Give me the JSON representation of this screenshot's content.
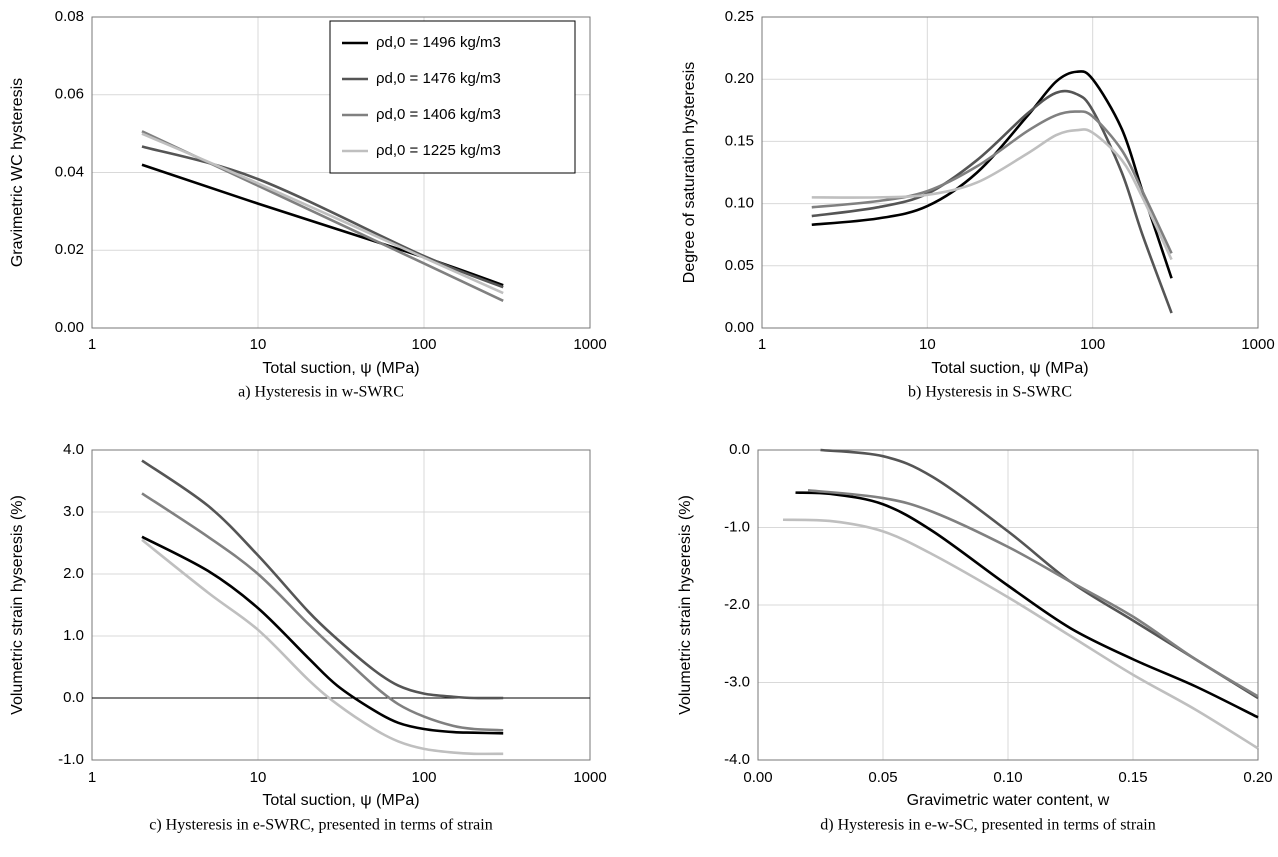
{
  "chart_data": [
    {
      "type": "line",
      "xlabel": "Total suction, ψ (MPa)",
      "ylabel": "Gravimetric WC hysteresis",
      "caption": "a) Hysteresis in w-SWRC",
      "xlog": true,
      "xlim": [
        1,
        1000
      ],
      "xticks": [
        1,
        10,
        100,
        1000
      ],
      "ylim": [
        0,
        0.08
      ],
      "yticks": [
        {
          "value": 0,
          "label": "0.00"
        },
        {
          "value": 0.02,
          "label": "0.02"
        },
        {
          "value": 0.04,
          "label": "0.04"
        },
        {
          "value": 0.06,
          "label": "0.06"
        },
        {
          "value": 0.08,
          "label": "0.08"
        }
      ],
      "grid": true,
      "legend": "top-right",
      "x": [
        2,
        10,
        100,
        300
      ],
      "series": [
        {
          "name": "ρd,0 = 1496 kg/m3",
          "color": "#000000",
          "values": [
            0.042,
            0.032,
            0.0182,
            0.011
          ]
        },
        {
          "name": "ρd,0 = 1476 kg/m3",
          "color": "#555555",
          "values": [
            0.0467,
            0.0383,
            0.0185,
            0.0105
          ]
        },
        {
          "name": "ρd,0 = 1406 kg/m3",
          "color": "#808080",
          "values": [
            0.0506,
            0.0366,
            0.0166,
            0.007
          ]
        },
        {
          "name": "ρd,0 = 1225 kg/m3",
          "color": "#bfbfbf",
          "values": [
            0.05,
            0.0372,
            0.0181,
            0.009
          ]
        }
      ]
    },
    {
      "type": "line",
      "xlabel": "Total suction, ψ (MPa)",
      "ylabel": "Degree of saturation hysteresis",
      "caption": "b) Hysteresis in S-SWRC",
      "xlog": true,
      "xlim": [
        1,
        1000
      ],
      "xticks": [
        1,
        10,
        100,
        1000
      ],
      "ylim": [
        0,
        0.25
      ],
      "yticks": [
        {
          "value": 0,
          "label": "0.00"
        },
        {
          "value": 0.05,
          "label": "0.05"
        },
        {
          "value": 0.1,
          "label": "0.10"
        },
        {
          "value": 0.15,
          "label": "0.15"
        },
        {
          "value": 0.2,
          "label": "0.20"
        },
        {
          "value": 0.25,
          "label": "0.25"
        }
      ],
      "grid": true,
      "x": [
        2,
        5,
        10,
        20,
        40,
        60,
        80,
        100,
        150,
        200,
        300
      ],
      "series": [
        {
          "color": "#000000",
          "values": [
            0.083,
            0.088,
            0.098,
            0.125,
            0.17,
            0.198,
            0.206,
            0.2,
            0.16,
            0.11,
            0.04
          ]
        },
        {
          "color": "#555555",
          "values": [
            0.09,
            0.097,
            0.108,
            0.135,
            0.172,
            0.189,
            0.188,
            0.175,
            0.125,
            0.075,
            0.012
          ]
        },
        {
          "color": "#808080",
          "values": [
            0.097,
            0.102,
            0.11,
            0.13,
            0.158,
            0.171,
            0.174,
            0.17,
            0.143,
            0.11,
            0.06
          ]
        },
        {
          "color": "#bfbfbf",
          "values": [
            0.105,
            0.105,
            0.107,
            0.117,
            0.14,
            0.155,
            0.159,
            0.157,
            0.135,
            0.105,
            0.055
          ]
        }
      ]
    },
    {
      "type": "line",
      "xlabel": "Total suction, ψ (MPa)",
      "ylabel": "Volumetric strain hyseresis (%)",
      "caption": "c) Hysteresis in e-SWRC, presented in terms of strain",
      "xlog": true,
      "xlim": [
        1,
        1000
      ],
      "xticks": [
        1,
        10,
        100,
        1000
      ],
      "ylim": [
        -1,
        4
      ],
      "yticks": [
        {
          "value": -1,
          "label": "-1.0"
        },
        {
          "value": 0,
          "label": "0.0"
        },
        {
          "value": 1,
          "label": "1.0"
        },
        {
          "value": 2,
          "label": "2.0"
        },
        {
          "value": 3,
          "label": "3.0"
        },
        {
          "value": 4,
          "label": "4.0"
        }
      ],
      "grid": true,
      "x": [
        2,
        5,
        10,
        20,
        30,
        50,
        70,
        100,
        150,
        200,
        300
      ],
      "series": [
        {
          "color": "#000000",
          "values": [
            2.6,
            2.05,
            1.45,
            0.65,
            0.2,
            -0.2,
            -0.4,
            -0.5,
            -0.55,
            -0.56,
            -0.57
          ]
        },
        {
          "color": "#555555",
          "values": [
            3.83,
            3.1,
            2.3,
            1.4,
            0.95,
            0.45,
            0.2,
            0.07,
            0.02,
            0,
            0
          ]
        },
        {
          "color": "#808080",
          "values": [
            3.3,
            2.6,
            2,
            1.2,
            0.75,
            0.2,
            -0.1,
            -0.3,
            -0.45,
            -0.5,
            -0.52
          ]
        },
        {
          "color": "#bfbfbf",
          "values": [
            2.55,
            1.7,
            1.1,
            0.3,
            -0.1,
            -0.5,
            -0.7,
            -0.82,
            -0.88,
            -0.9,
            -0.9
          ]
        }
      ]
    },
    {
      "type": "line",
      "xlabel": "Gravimetric water content, w",
      "ylabel": "Volumetric strain hyseresis (%)",
      "caption": "d) Hysteresis in e-w-SC, presented in terms of strain",
      "xlim": [
        0,
        0.2
      ],
      "xticks": [
        {
          "value": 0,
          "label": "0.00"
        },
        {
          "value": 0.05,
          "label": "0.05"
        },
        {
          "value": 0.1,
          "label": "0.10"
        },
        {
          "value": 0.15,
          "label": "0.15"
        },
        {
          "value": 0.2,
          "label": "0.20"
        }
      ],
      "ylim": [
        -4,
        0
      ],
      "yticks": [
        {
          "value": -4,
          "label": "-4.0"
        },
        {
          "value": -3,
          "label": "-3.0"
        },
        {
          "value": -2,
          "label": "-2.0"
        },
        {
          "value": -1,
          "label": "-1.0"
        },
        {
          "value": 0,
          "label": "0.0"
        }
      ],
      "grid": true,
      "series": [
        {
          "color": "#000000",
          "x": [
            0.015,
            0.03,
            0.05,
            0.07,
            0.1,
            0.125,
            0.15,
            0.175,
            0.2
          ],
          "values": [
            -0.55,
            -0.57,
            -0.7,
            -1.05,
            -1.75,
            -2.3,
            -2.7,
            -3.05,
            -3.45
          ]
        },
        {
          "color": "#555555",
          "x": [
            0.025,
            0.05,
            0.07,
            0.1,
            0.125,
            0.15,
            0.175,
            0.2
          ],
          "values": [
            0,
            -0.08,
            -0.35,
            -1.05,
            -1.7,
            -2.2,
            -2.7,
            -3.2
          ]
        },
        {
          "color": "#808080",
          "x": [
            0.02,
            0.05,
            0.07,
            0.1,
            0.125,
            0.15,
            0.175,
            0.2
          ],
          "values": [
            -0.52,
            -0.62,
            -0.8,
            -1.25,
            -1.7,
            -2.15,
            -2.7,
            -3.18
          ]
        },
        {
          "color": "#bfbfbf",
          "x": [
            0.01,
            0.03,
            0.05,
            0.07,
            0.1,
            0.125,
            0.15,
            0.175,
            0.2
          ],
          "values": [
            -0.9,
            -0.92,
            -1.05,
            -1.35,
            -1.9,
            -2.4,
            -2.9,
            -3.35,
            -3.85
          ]
        }
      ]
    }
  ]
}
